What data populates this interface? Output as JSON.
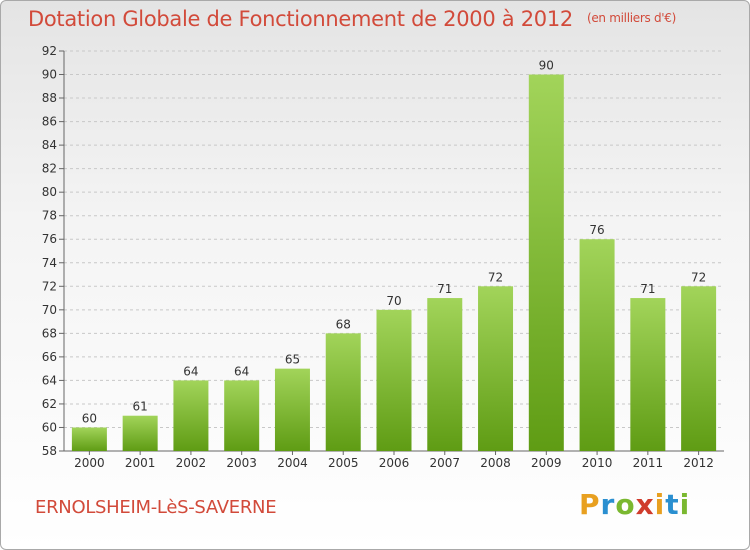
{
  "title": "Dotation Globale de Fonctionnement de 2000 à 2012",
  "unit_note": "(en milliers d'€)",
  "commune": "ERNOLSHEIM-LèS-SAVERNE",
  "brand": {
    "letters": [
      "P",
      "r",
      "o",
      "x",
      "i",
      "t",
      "i"
    ],
    "colors": [
      "#e8a020",
      "#2a8fd0",
      "#7ab830",
      "#d03c2c",
      "#e8a020",
      "#2a8fd0",
      "#7ab830"
    ]
  },
  "colors": {
    "title": "#d24a3a",
    "bar_top": "#a2d45a",
    "bar_bottom": "#5f9c14",
    "grid": "#c8c8c8"
  },
  "chart_data": {
    "type": "bar",
    "categories": [
      "2000",
      "2001",
      "2002",
      "2003",
      "2004",
      "2005",
      "2006",
      "2007",
      "2008",
      "2009",
      "2010",
      "2011",
      "2012"
    ],
    "values": [
      60,
      61,
      64,
      64,
      65,
      68,
      70,
      71,
      72,
      90,
      76,
      71,
      72
    ],
    "yticks": [
      58,
      60,
      62,
      64,
      66,
      68,
      70,
      72,
      74,
      76,
      78,
      80,
      82,
      84,
      86,
      88,
      90,
      92
    ],
    "ylim": [
      58,
      92
    ],
    "grid": "horizontal dashed",
    "legend": "none"
  }
}
